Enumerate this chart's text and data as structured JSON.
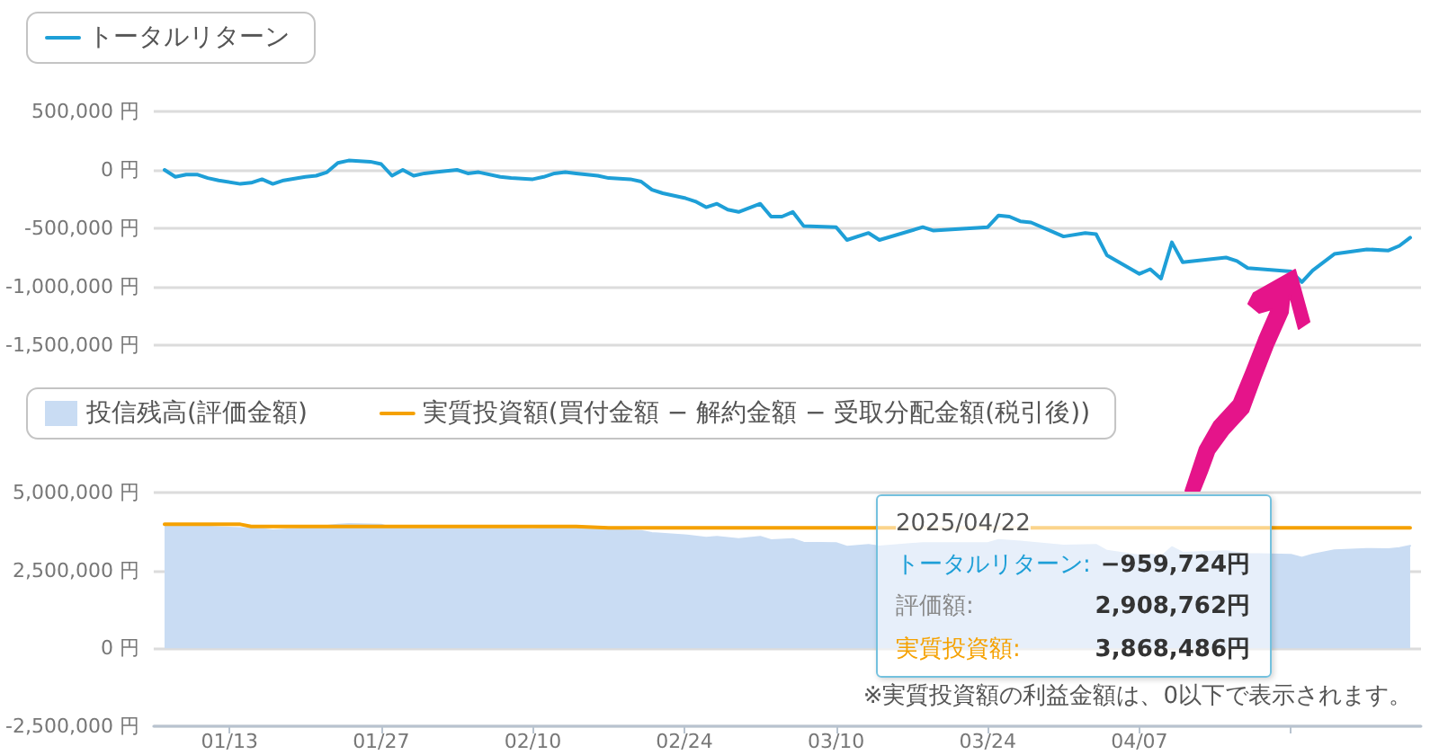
{
  "chart_data": [
    {
      "type": "line",
      "legend": "top left",
      "grid": "y",
      "marker": "none",
      "tick_labels": "y",
      "xlim": [
        "2025-01-06",
        "2025-05-03"
      ],
      "ylim": [
        -1500000,
        500000
      ],
      "yticks": [
        {
          "value": 500000,
          "label": "500,000 円"
        },
        {
          "value": 0,
          "label": "0 円"
        },
        {
          "value": -500000,
          "label": "-500,000 円"
        },
        {
          "value": -1000000,
          "label": "-1,000,000 円"
        },
        {
          "value": -1500000,
          "label": "-1,500,000 円"
        }
      ],
      "series": [
        {
          "name": "トータルリターン",
          "color": "#1e9fd7",
          "x": [
            "2025-01-07",
            "2025-01-08",
            "2025-01-09",
            "2025-01-10",
            "2025-01-11",
            "2025-01-12",
            "2025-01-14",
            "2025-01-15",
            "2025-01-16",
            "2025-01-17",
            "2025-01-18",
            "2025-01-20",
            "2025-01-21",
            "2025-01-22",
            "2025-01-23",
            "2025-01-24",
            "2025-01-26",
            "2025-01-27",
            "2025-01-28",
            "2025-01-29",
            "2025-01-30",
            "2025-01-31",
            "2025-02-01",
            "2025-02-03",
            "2025-02-04",
            "2025-02-05",
            "2025-02-07",
            "2025-02-08",
            "2025-02-10",
            "2025-02-11",
            "2025-02-12",
            "2025-02-13",
            "2025-02-14",
            "2025-02-16",
            "2025-02-17",
            "2025-02-19",
            "2025-02-20",
            "2025-02-21",
            "2025-02-22",
            "2025-02-24",
            "2025-02-25",
            "2025-02-26",
            "2025-02-27",
            "2025-02-28",
            "2025-03-01",
            "2025-03-03",
            "2025-03-04",
            "2025-03-05",
            "2025-03-06",
            "2025-03-07",
            "2025-03-10",
            "2025-03-11",
            "2025-03-13",
            "2025-03-14",
            "2025-03-18",
            "2025-03-19",
            "2025-03-24",
            "2025-03-25",
            "2025-03-26",
            "2025-03-27",
            "2025-03-28",
            "2025-03-31",
            "2025-04-02",
            "2025-04-03",
            "2025-04-04",
            "2025-04-07",
            "2025-04-08",
            "2025-04-09",
            "2025-04-10",
            "2025-04-11",
            "2025-04-15",
            "2025-04-16",
            "2025-04-17",
            "2025-04-21",
            "2025-04-22",
            "2025-04-23",
            "2025-04-25",
            "2025-04-28",
            "2025-04-30",
            "2025-05-01",
            "2025-05-02"
          ],
          "values": [
            0,
            -60000,
            -40000,
            -40000,
            -70000,
            -90000,
            -120000,
            -110000,
            -80000,
            -120000,
            -90000,
            -60000,
            -50000,
            -20000,
            60000,
            80000,
            70000,
            50000,
            -50000,
            0,
            -50000,
            -30000,
            -20000,
            0,
            -30000,
            -20000,
            -60000,
            -70000,
            -80000,
            -60000,
            -30000,
            -20000,
            -30000,
            -50000,
            -70000,
            -80000,
            -100000,
            -170000,
            -200000,
            -240000,
            -270000,
            -320000,
            -290000,
            -340000,
            -360000,
            -290000,
            -400000,
            -400000,
            -360000,
            -480000,
            -490000,
            -600000,
            -540000,
            -600000,
            -490000,
            -520000,
            -490000,
            -390000,
            -400000,
            -440000,
            -450000,
            -570000,
            -540000,
            -550000,
            -730000,
            -890000,
            -850000,
            -930000,
            -620000,
            -790000,
            -750000,
            -780000,
            -840000,
            -870000,
            -959724,
            -860000,
            -720000,
            -680000,
            -690000,
            -650000,
            -580000
          ]
        }
      ]
    },
    {
      "type": "area",
      "legend": "top left",
      "grid": "y",
      "marker": "none",
      "xlim": [
        "2025-01-06",
        "2025-05-03"
      ],
      "ylim": [
        -2500000,
        5000000
      ],
      "xticks": [
        {
          "value": "2025-01-13",
          "label": "01/13"
        },
        {
          "value": "2025-01-27",
          "label": "01/27"
        },
        {
          "value": "2025-02-10",
          "label": "02/10"
        },
        {
          "value": "2025-02-24",
          "label": "02/24"
        },
        {
          "value": "2025-03-10",
          "label": "03/10"
        },
        {
          "value": "2025-03-24",
          "label": "03/24"
        },
        {
          "value": "2025-04-07",
          "label": "04/07"
        },
        {
          "value": "2025-04-21",
          "label": null
        }
      ],
      "yticks": [
        {
          "value": 5000000,
          "label": "5,000,000 円"
        },
        {
          "value": 2500000,
          "label": "2,500,000 円"
        },
        {
          "value": 0,
          "label": "0 円"
        },
        {
          "value": -2500000,
          "label": "-2,500,000 円"
        }
      ],
      "series": [
        {
          "name": "投信残高(評価金額)",
          "color": "#c9dcf3",
          "x": [
            "2025-01-07",
            "2025-01-09",
            "2025-01-12",
            "2025-01-14",
            "2025-01-16",
            "2025-01-17",
            "2025-01-20",
            "2025-01-23",
            "2025-01-24",
            "2025-01-27",
            "2025-01-28",
            "2025-01-29",
            "2025-01-31",
            "2025-02-03",
            "2025-02-07",
            "2025-02-10",
            "2025-02-13",
            "2025-02-17",
            "2025-02-20",
            "2025-02-21",
            "2025-02-24",
            "2025-02-26",
            "2025-02-27",
            "2025-03-01",
            "2025-03-03",
            "2025-03-04",
            "2025-03-06",
            "2025-03-07",
            "2025-03-10",
            "2025-03-11",
            "2025-03-13",
            "2025-03-14",
            "2025-03-18",
            "2025-03-24",
            "2025-03-25",
            "2025-03-27",
            "2025-03-31",
            "2025-04-03",
            "2025-04-04",
            "2025-04-07",
            "2025-04-08",
            "2025-04-09",
            "2025-04-10",
            "2025-04-11",
            "2025-04-15",
            "2025-04-17",
            "2025-04-21",
            "2025-04-22",
            "2025-04-23",
            "2025-04-25",
            "2025-04-28",
            "2025-04-30",
            "2025-05-01",
            "2025-05-02"
          ],
          "values": [
            3980000,
            3950000,
            3890000,
            3860000,
            3830000,
            3790000,
            3850000,
            3970000,
            3990000,
            3970000,
            3860000,
            3920000,
            3890000,
            3910000,
            3850000,
            3830000,
            3890000,
            3800000,
            3770000,
            3700000,
            3630000,
            3550000,
            3580000,
            3510000,
            3580000,
            3470000,
            3510000,
            3390000,
            3380000,
            3260000,
            3320000,
            3270000,
            3380000,
            3380000,
            3480000,
            3430000,
            3300000,
            3320000,
            3130000,
            2980000,
            3020000,
            2940000,
            3250000,
            3070000,
            3120000,
            3030000,
            3000000,
            2908762,
            3010000,
            3150000,
            3190000,
            3180000,
            3220000,
            3290000
          ]
        },
        {
          "name": "実質投資額(買付金額 − 解約金額 − 受取分配金額(税引後))",
          "type": "line",
          "color": "#f5a100",
          "x": [
            "2025-01-07",
            "2025-01-14",
            "2025-01-15",
            "2025-02-14",
            "2025-02-17",
            "2025-05-02"
          ],
          "values": [
            3980000,
            3980000,
            3910000,
            3910000,
            3868486,
            3868486
          ]
        }
      ],
      "annotations": [
        "※実質投資額の利益金額は、0以下で表示されます。",
        "2025/04/22",
        "トータルリターン:",
        "−959,724円",
        "評価額:",
        "2,908,762円",
        "実質投資額:",
        "3,868,486円"
      ]
    }
  ]
}
